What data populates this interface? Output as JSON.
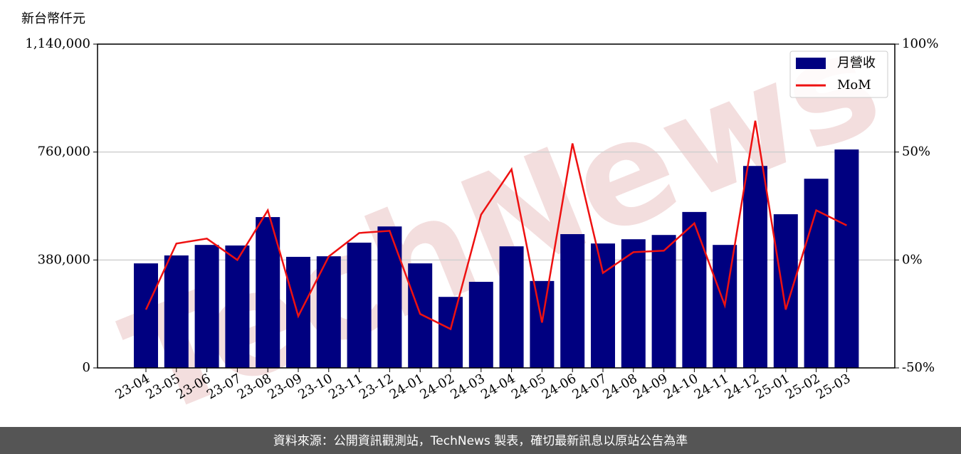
{
  "chart_data": {
    "type": "bar",
    "y_unit_label": "新台幣仟元",
    "watermark": "TechNews",
    "footer": "資料來源：公開資訊觀測站，TechNews 製表，確切最新訊息以原站公告為準",
    "categories": [
      "23-04",
      "23-05",
      "23-06",
      "23-07",
      "23-08",
      "23-09",
      "23-10",
      "23-11",
      "23-12",
      "24-01",
      "24-02",
      "24-03",
      "24-04",
      "24-05",
      "24-06",
      "24-07",
      "24-08",
      "24-09",
      "24-10",
      "24-11",
      "24-12",
      "25-01",
      "25-02",
      "25-03"
    ],
    "series": [
      {
        "name": "月營收",
        "type": "bar",
        "color": "#000080",
        "values": [
          368000,
          396000,
          433000,
          431000,
          531000,
          391000,
          393000,
          441000,
          498000,
          368000,
          250000,
          303000,
          428000,
          306000,
          471000,
          438000,
          453000,
          468000,
          549000,
          433000,
          711000,
          541000,
          666000,
          769000
        ]
      },
      {
        "name": "MoM",
        "type": "line",
        "axis": "y2",
        "color": "#ee1111",
        "values": [
          -23,
          7.6,
          9.9,
          0,
          23,
          -26,
          1.6,
          12.5,
          13.5,
          -25,
          -32,
          21,
          42,
          -29,
          54,
          -6,
          3.6,
          4.3,
          17,
          -21,
          64.5,
          -23,
          23,
          16
        ]
      }
    ],
    "ylim": [
      0,
      1140000
    ],
    "yticks": [
      {
        "value": 0,
        "label": "0"
      },
      {
        "value": 380000,
        "label": "380,000"
      },
      {
        "value": 760000,
        "label": "760,000"
      },
      {
        "value": 1140000,
        "label": "1,140,000"
      }
    ],
    "y2lim": [
      -50,
      100
    ],
    "y2ticks": [
      {
        "value": -50,
        "label": "-50%"
      },
      {
        "value": 0,
        "label": "0%"
      },
      {
        "value": 50,
        "label": "50%"
      },
      {
        "value": 100,
        "label": "100%"
      }
    ],
    "grid": true,
    "legend": "upper-right"
  }
}
